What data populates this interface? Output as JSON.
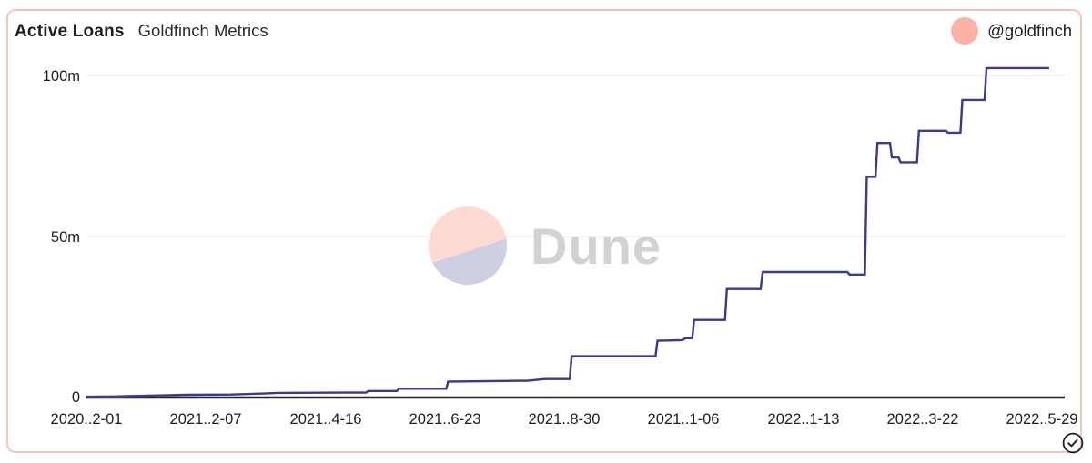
{
  "header": {
    "title": "Active Loans",
    "subtitle": "Goldfinch Metrics",
    "author_handle": "@goldfinch"
  },
  "watermark": {
    "text": "Dune"
  },
  "palette": {
    "line": "#3a3a8e",
    "axis": "#25242a",
    "grid": "#ededef",
    "text": "#1d1d22",
    "card_border": "#f5c4bd",
    "avatar_bg": "#fbb3a8",
    "wm_pink": "#fcd9d2",
    "wm_lavender": "#cfcfe4",
    "wm_text": "#d2d2d4"
  },
  "chart_data": {
    "type": "line",
    "title": "Active Loans",
    "subtitle": "Goldfinch Metrics",
    "legend": "none",
    "grid": "horizontal",
    "ylim": [
      0,
      107
    ],
    "yticks_m": [
      100,
      50,
      0
    ],
    "ytick_labels": [
      "100m",
      "50m",
      "0"
    ],
    "xtick_labels": [
      "2020..2-01",
      "2021..2-07",
      "2021..4-16",
      "2021..6-23",
      "2021..8-30",
      "2021..1-06",
      "2022..1-13",
      "2022..3-22",
      "2022..5-29"
    ],
    "series": [
      {
        "name": "Active Loans",
        "unit": "millions",
        "points": [
          [
            0.0,
            0.1
          ],
          [
            0.03,
            0.2
          ],
          [
            0.042,
            0.3
          ],
          [
            0.075,
            0.5
          ],
          [
            0.104,
            0.7
          ],
          [
            0.15,
            0.8
          ],
          [
            0.184,
            1.1
          ],
          [
            0.198,
            1.3
          ],
          [
            0.264,
            1.4
          ],
          [
            0.29,
            1.4
          ],
          [
            0.292,
            1.9
          ],
          [
            0.322,
            1.9
          ],
          [
            0.324,
            2.6
          ],
          [
            0.373,
            2.6
          ],
          [
            0.375,
            4.8
          ],
          [
            0.458,
            5.1
          ],
          [
            0.475,
            5.6
          ],
          [
            0.501,
            5.6
          ],
          [
            0.503,
            12.7
          ],
          [
            0.59,
            12.7
          ],
          [
            0.592,
            17.5
          ],
          [
            0.618,
            17.7
          ],
          [
            0.621,
            18.3
          ],
          [
            0.628,
            18.3
          ],
          [
            0.63,
            24.0
          ],
          [
            0.662,
            24.0
          ],
          [
            0.664,
            33.6
          ],
          [
            0.699,
            33.6
          ],
          [
            0.701,
            38.9
          ],
          [
            0.789,
            38.9
          ],
          [
            0.791,
            38.1
          ],
          [
            0.807,
            38.1
          ],
          [
            0.809,
            68.5
          ],
          [
            0.818,
            68.5
          ],
          [
            0.82,
            79.0
          ],
          [
            0.833,
            79.0
          ],
          [
            0.835,
            74.5
          ],
          [
            0.842,
            74.5
          ],
          [
            0.844,
            73.0
          ],
          [
            0.861,
            73.0
          ],
          [
            0.863,
            82.8
          ],
          [
            0.891,
            82.8
          ],
          [
            0.893,
            82.2
          ],
          [
            0.906,
            82.2
          ],
          [
            0.908,
            92.4
          ],
          [
            0.931,
            92.4
          ],
          [
            0.933,
            102.3
          ],
          [
            0.998,
            102.3
          ]
        ]
      }
    ]
  }
}
